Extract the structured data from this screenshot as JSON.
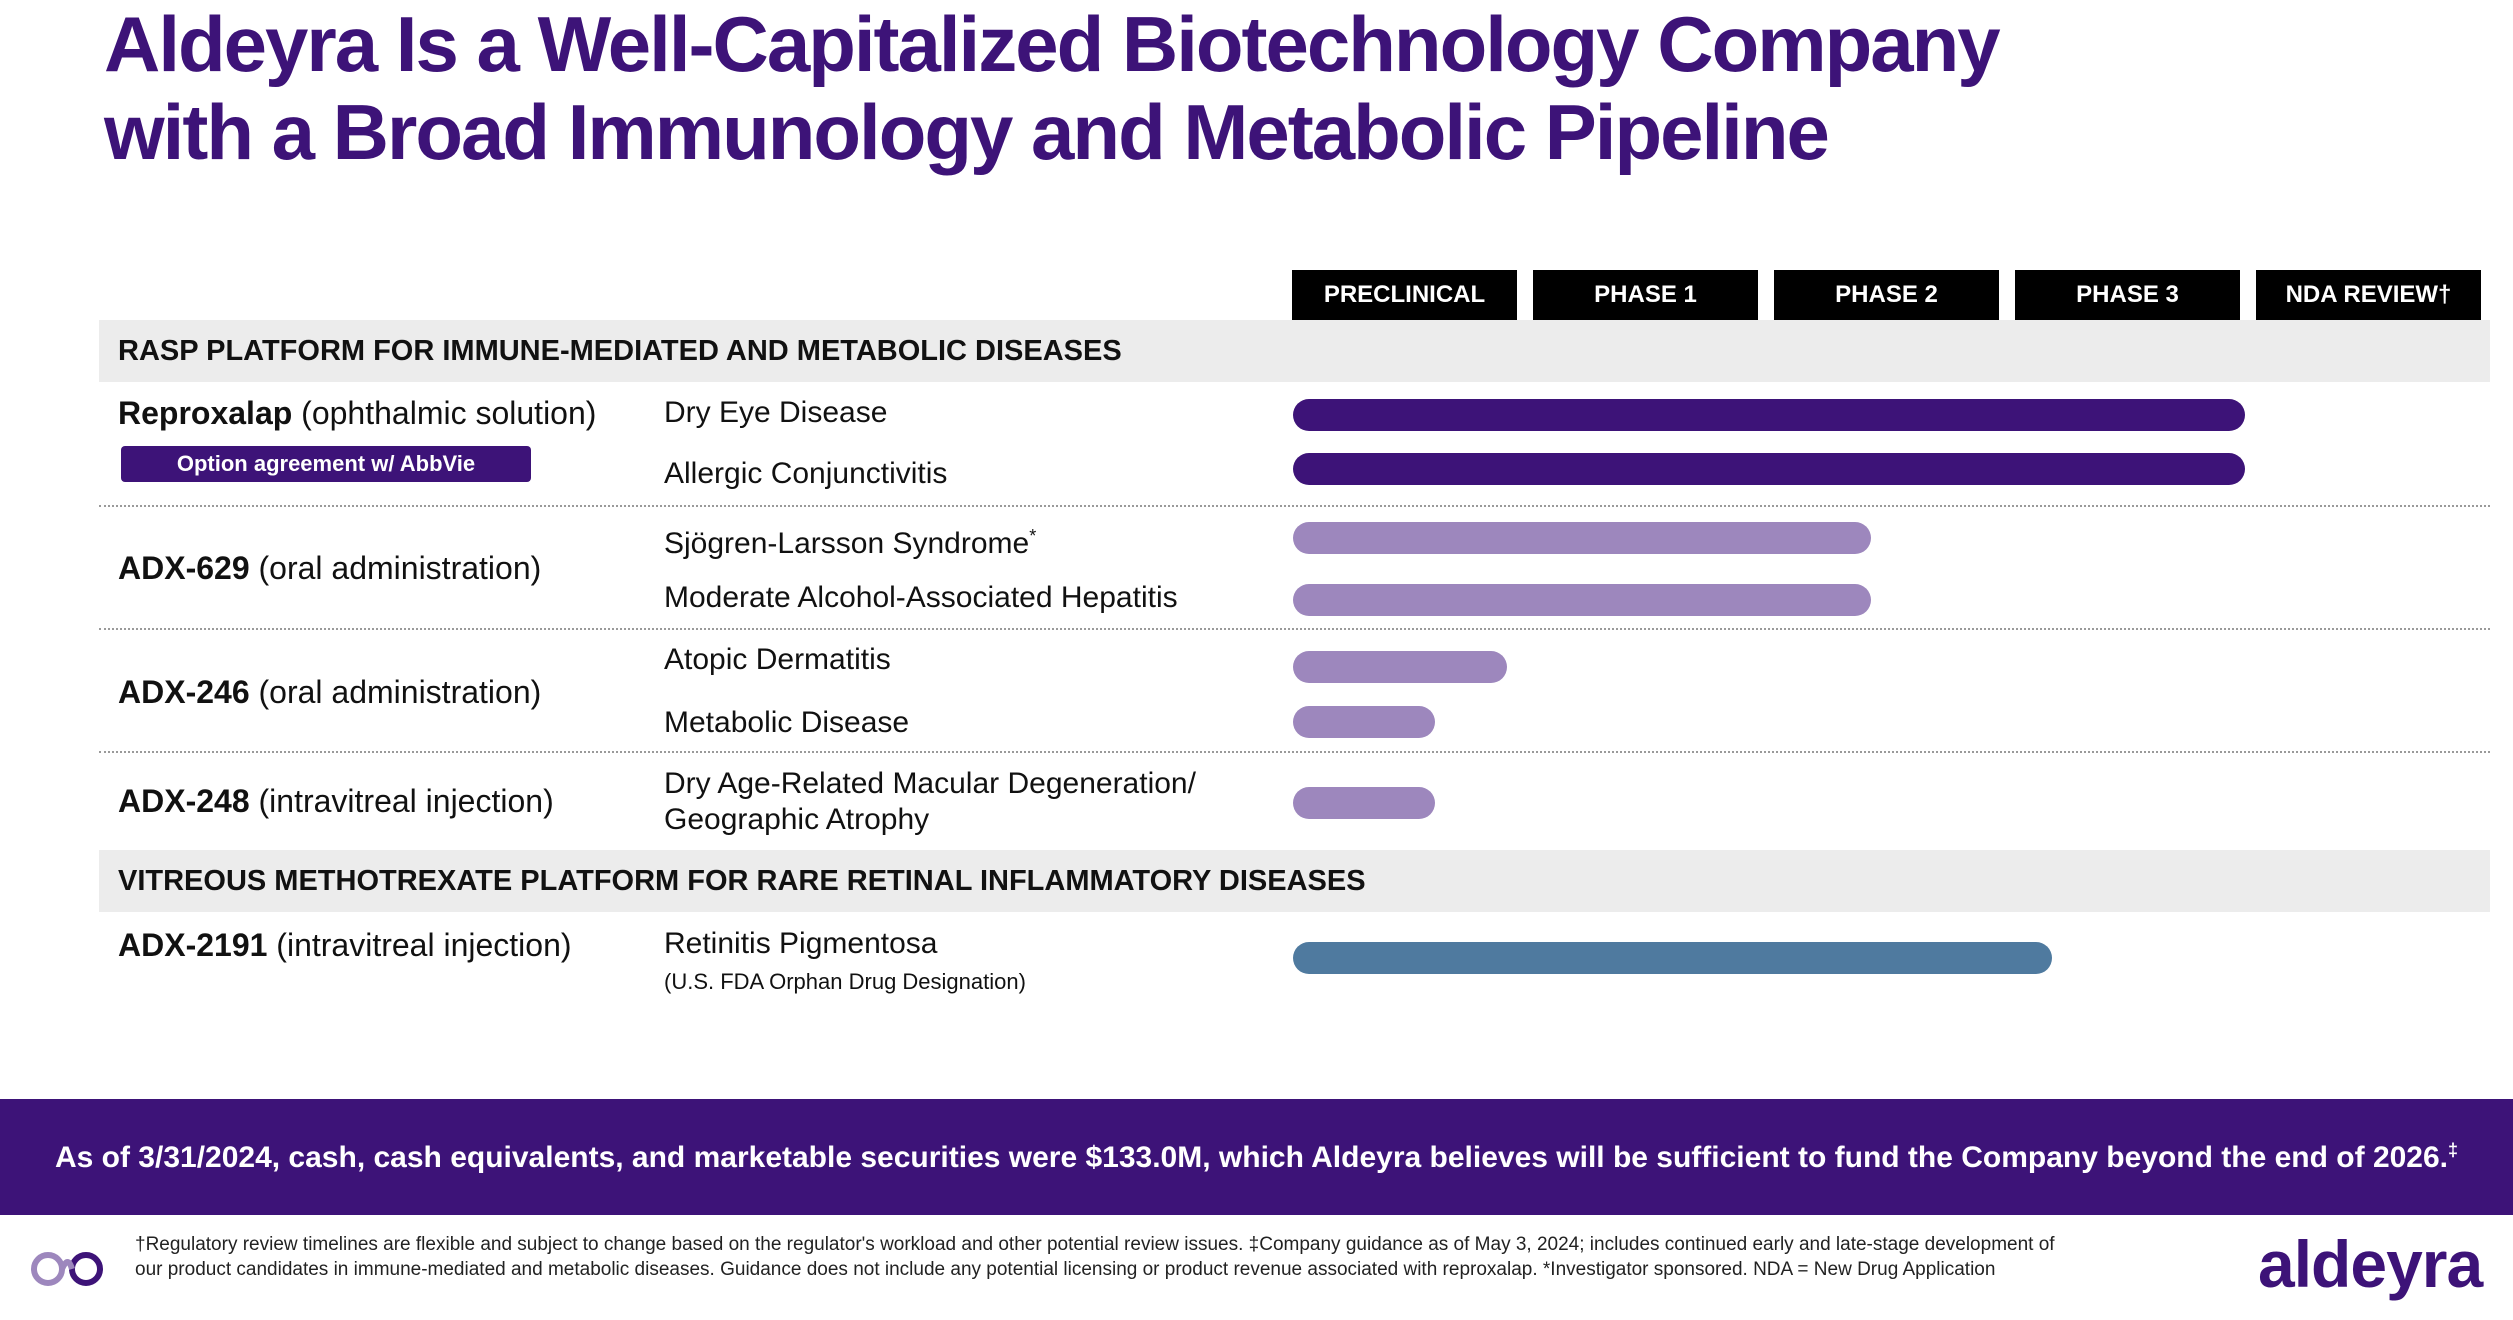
{
  "title": {
    "line1": "Aldeyra Is a Well-Capitalized Biotechnology Company",
    "line2": "with a Broad Immunology and Metabolic Pipeline"
  },
  "phases": [
    "PRECLINICAL",
    "PHASE 1",
    "PHASE 2",
    "PHASE 3",
    "NDA REVIEW†"
  ],
  "sections": [
    {
      "label": "RASP PLATFORM FOR IMMUNE-MEDIATED AND METABOLIC DISEASES"
    },
    {
      "label": "VITREOUS METHOTREXATE PLATFORM FOR RARE RETINAL INFLAMMATORY DISEASES"
    }
  ],
  "drugs": [
    {
      "name": "Reproxalap",
      "route": " (ophthalmic solution)",
      "badge": "Option agreement w/ AbbVie",
      "indications": [
        {
          "label": "Dry Eye Disease",
          "progress_phase": 3.95,
          "color": "#3d1378"
        },
        {
          "label": "Allergic Conjunctivitis",
          "progress_phase": 3.95,
          "color": "#3d1378"
        }
      ]
    },
    {
      "name": "ADX-629",
      "route": " (oral administration)",
      "indications": [
        {
          "label": "Sjögren-Larsson Syndrome",
          "sup": "*",
          "progress_phase": 2.4,
          "color": "#9d87bd"
        },
        {
          "label": "Moderate Alcohol-Associated Hepatitis",
          "progress_phase": 2.4,
          "color": "#9d87bd"
        }
      ]
    },
    {
      "name": "ADX-246",
      "route": " (oral administration)",
      "indications": [
        {
          "label": "Atopic Dermatitis",
          "progress_phase": 0.89,
          "color": "#9d87bd"
        },
        {
          "label": "Metabolic Disease",
          "progress_phase": 0.59,
          "color": "#9d87bd"
        }
      ]
    },
    {
      "name": "ADX-248",
      "route": " (intravitreal injection)",
      "indications": [
        {
          "label": "Dry Age-Related Macular Degeneration/",
          "label2": "Geographic Atrophy",
          "progress_phase": 0.59,
          "color": "#9d87bd"
        }
      ]
    },
    {
      "name": "ADX-2191",
      "route": " (intravitreal injection)",
      "indications": [
        {
          "label": "Retinitis Pigmentosa",
          "note": "(U.S. FDA Orphan Drug Designation)",
          "progress_phase": 3.15,
          "color": "#4f7a9f"
        }
      ]
    }
  ],
  "cash_statement": "As of 3/31/2024, cash, cash equivalents, and marketable securities were $133.0M, which Aldeyra believes will be sufficient to fund the Company beyond the end of 2026.",
  "cash_footnote_mark": "‡",
  "footnote": {
    "line1": "†Regulatory review timelines are flexible and subject to change based on the regulator's workload and other potential review issues. ‡Company guidance as of  May 3, 2024; includes continued early and late-stage development of",
    "line2": "our product candidates in immune-mediated and metabolic diseases. Guidance does not include any potential licensing or product revenue associated with reproxalap. *Investigator sponsored. NDA = New Drug Application"
  },
  "logo_text": "aldeyra",
  "colors": {
    "brand_purple": "#3d1378",
    "light_purple": "#9d87bd",
    "steel_blue": "#4f7a9f",
    "section_gray": "#ececec"
  }
}
